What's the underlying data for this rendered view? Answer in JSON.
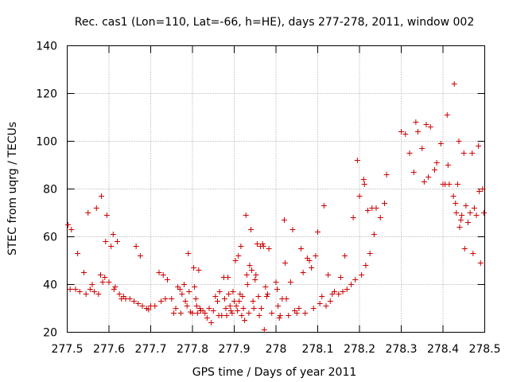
{
  "chart_data": {
    "type": "scatter",
    "title": "Rec. cas1 (Lon=110, Lat=-66, h=HE), days 277-278, 2011, window 002",
    "xlabel": "GPS time / Days of year 2011",
    "ylabel": "STEC from uqrg / TECUs",
    "xlim": [
      277.5,
      278.5
    ],
    "ylim": [
      20,
      140
    ],
    "xticks": [
      277.5,
      277.6,
      277.7,
      277.8,
      277.9,
      278.0,
      278.1,
      278.2,
      278.3,
      278.4,
      278.5
    ],
    "xtick_labels": [
      "277.5",
      "277.6",
      "277.7",
      "277.8",
      "277.9",
      "278",
      "278.1",
      "278.2",
      "278.3",
      "278.4",
      "278.5"
    ],
    "yticks": [
      20,
      40,
      60,
      80,
      100,
      120,
      140
    ],
    "ytick_labels": [
      "20",
      "40",
      "60",
      "80",
      "100",
      "120",
      "140"
    ],
    "grid": true,
    "marker": "plus",
    "color": "#cc0000",
    "points": [
      [
        277.502,
        65
      ],
      [
        277.507,
        38
      ],
      [
        277.51,
        63
      ],
      [
        277.52,
        38
      ],
      [
        277.525,
        53
      ],
      [
        277.53,
        37
      ],
      [
        277.54,
        45
      ],
      [
        277.545,
        36
      ],
      [
        277.55,
        70
      ],
      [
        277.555,
        38
      ],
      [
        277.56,
        40
      ],
      [
        277.565,
        37
      ],
      [
        277.57,
        72
      ],
      [
        277.575,
        36
      ],
      [
        277.58,
        44
      ],
      [
        277.582,
        77
      ],
      [
        277.585,
        41
      ],
      [
        277.59,
        43
      ],
      [
        277.592,
        58
      ],
      [
        277.595,
        69
      ],
      [
        277.6,
        41
      ],
      [
        277.605,
        56
      ],
      [
        277.61,
        61
      ],
      [
        277.612,
        38
      ],
      [
        277.615,
        39
      ],
      [
        277.62,
        58
      ],
      [
        277.625,
        36
      ],
      [
        277.63,
        34
      ],
      [
        277.635,
        35
      ],
      [
        277.64,
        34
      ],
      [
        277.65,
        34
      ],
      [
        277.66,
        33
      ],
      [
        277.665,
        56
      ],
      [
        277.67,
        32
      ],
      [
        277.675,
        52
      ],
      [
        277.68,
        31
      ],
      [
        277.69,
        30
      ],
      [
        277.695,
        29.5
      ],
      [
        277.7,
        31
      ],
      [
        277.71,
        31
      ],
      [
        277.72,
        45
      ],
      [
        277.725,
        33
      ],
      [
        277.73,
        44
      ],
      [
        277.735,
        34
      ],
      [
        277.74,
        42
      ],
      [
        277.75,
        34
      ],
      [
        277.755,
        28
      ],
      [
        277.76,
        30
      ],
      [
        277.765,
        39
      ],
      [
        277.77,
        38
      ],
      [
        277.772,
        28
      ],
      [
        277.775,
        36
      ],
      [
        277.78,
        40
      ],
      [
        277.783,
        33
      ],
      [
        277.787,
        31
      ],
      [
        277.79,
        53
      ],
      [
        277.792,
        37
      ],
      [
        277.795,
        28.5
      ],
      [
        277.8,
        28
      ],
      [
        277.803,
        47
      ],
      [
        277.805,
        39
      ],
      [
        277.808,
        34
      ],
      [
        277.81,
        31
      ],
      [
        277.812,
        28
      ],
      [
        277.815,
        46
      ],
      [
        277.818,
        30
      ],
      [
        277.82,
        29
      ],
      [
        277.825,
        29
      ],
      [
        277.83,
        28
      ],
      [
        277.835,
        26
      ],
      [
        277.84,
        30
      ],
      [
        277.845,
        24
      ],
      [
        277.85,
        29
      ],
      [
        277.855,
        35
      ],
      [
        277.86,
        33
      ],
      [
        277.863,
        27
      ],
      [
        277.865,
        37
      ],
      [
        277.87,
        27
      ],
      [
        277.875,
        43
      ],
      [
        277.877,
        34
      ],
      [
        277.88,
        30
      ],
      [
        277.882,
        27
      ],
      [
        277.885,
        43
      ],
      [
        277.887,
        36
      ],
      [
        277.89,
        31
      ],
      [
        277.892,
        29
      ],
      [
        277.895,
        28
      ],
      [
        277.897,
        37
      ],
      [
        277.9,
        33
      ],
      [
        277.903,
        50
      ],
      [
        277.905,
        31
      ],
      [
        277.908,
        29
      ],
      [
        277.91,
        52
      ],
      [
        277.912,
        33
      ],
      [
        277.914,
        36
      ],
      [
        277.916,
        56
      ],
      [
        277.918,
        27
      ],
      [
        277.92,
        35
      ],
      [
        277.922,
        30
      ],
      [
        277.925,
        25
      ],
      [
        277.928,
        69
      ],
      [
        277.93,
        44
      ],
      [
        277.932,
        40
      ],
      [
        277.935,
        28
      ],
      [
        277.937,
        48
      ],
      [
        277.94,
        63
      ],
      [
        277.942,
        46
      ],
      [
        277.945,
        33
      ],
      [
        277.947,
        30
      ],
      [
        277.95,
        42
      ],
      [
        277.952,
        44
      ],
      [
        277.955,
        57
      ],
      [
        277.958,
        35
      ],
      [
        277.96,
        27
      ],
      [
        277.963,
        56
      ],
      [
        277.965,
        30
      ],
      [
        277.968,
        57
      ],
      [
        277.97,
        56
      ],
      [
        277.972,
        21
      ],
      [
        277.975,
        39
      ],
      [
        277.978,
        35
      ],
      [
        277.98,
        36
      ],
      [
        277.983,
        55
      ],
      [
        277.99,
        28
      ],
      [
        278.0,
        41
      ],
      [
        278.003,
        38
      ],
      [
        278.005,
        31
      ],
      [
        278.008,
        26
      ],
      [
        278.01,
        27
      ],
      [
        278.015,
        34
      ],
      [
        278.02,
        67
      ],
      [
        278.022,
        49
      ],
      [
        278.025,
        34
      ],
      [
        278.03,
        27
      ],
      [
        278.035,
        41
      ],
      [
        278.04,
        63
      ],
      [
        278.045,
        29
      ],
      [
        278.05,
        28
      ],
      [
        278.055,
        30
      ],
      [
        278.06,
        55
      ],
      [
        278.065,
        45
      ],
      [
        278.07,
        28
      ],
      [
        278.075,
        51
      ],
      [
        278.08,
        50
      ],
      [
        278.085,
        47
      ],
      [
        278.09,
        30
      ],
      [
        278.095,
        52
      ],
      [
        278.1,
        62
      ],
      [
        278.105,
        32
      ],
      [
        278.11,
        35
      ],
      [
        278.115,
        73
      ],
      [
        278.12,
        31
      ],
      [
        278.125,
        44
      ],
      [
        278.13,
        33
      ],
      [
        278.135,
        36
      ],
      [
        278.14,
        37
      ],
      [
        278.15,
        36
      ],
      [
        278.155,
        43
      ],
      [
        278.16,
        37
      ],
      [
        278.165,
        52
      ],
      [
        278.17,
        38
      ],
      [
        278.18,
        40
      ],
      [
        278.185,
        68
      ],
      [
        278.19,
        42
      ],
      [
        278.195,
        92
      ],
      [
        278.2,
        77
      ],
      [
        278.205,
        44
      ],
      [
        278.21,
        84
      ],
      [
        278.212,
        82
      ],
      [
        278.215,
        48
      ],
      [
        278.22,
        71
      ],
      [
        278.225,
        53
      ],
      [
        278.23,
        72
      ],
      [
        278.235,
        61
      ],
      [
        278.24,
        72
      ],
      [
        278.25,
        68
      ],
      [
        278.26,
        74
      ],
      [
        278.265,
        86
      ],
      [
        278.3,
        104
      ],
      [
        278.31,
        103
      ],
      [
        278.32,
        95
      ],
      [
        278.33,
        87
      ],
      [
        278.335,
        108
      ],
      [
        278.34,
        104
      ],
      [
        278.35,
        97
      ],
      [
        278.355,
        83
      ],
      [
        278.36,
        107
      ],
      [
        278.365,
        85
      ],
      [
        278.37,
        106
      ],
      [
        278.38,
        88
      ],
      [
        278.385,
        91
      ],
      [
        278.395,
        99
      ],
      [
        278.4,
        82
      ],
      [
        278.405,
        82
      ],
      [
        278.41,
        111
      ],
      [
        278.412,
        90
      ],
      [
        278.415,
        82
      ],
      [
        278.425,
        77
      ],
      [
        278.427,
        124
      ],
      [
        278.43,
        74
      ],
      [
        278.432,
        70
      ],
      [
        278.435,
        82
      ],
      [
        278.438,
        100
      ],
      [
        278.44,
        64
      ],
      [
        278.443,
        67
      ],
      [
        278.445,
        69
      ],
      [
        278.45,
        95
      ],
      [
        278.452,
        55
      ],
      [
        278.455,
        73
      ],
      [
        278.46,
        66
      ],
      [
        278.465,
        70
      ],
      [
        278.47,
        95
      ],
      [
        278.472,
        53
      ],
      [
        278.475,
        72
      ],
      [
        278.48,
        69
      ],
      [
        278.485,
        98
      ],
      [
        278.487,
        79
      ],
      [
        278.49,
        49
      ],
      [
        278.495,
        80
      ],
      [
        278.498,
        70
      ]
    ]
  }
}
